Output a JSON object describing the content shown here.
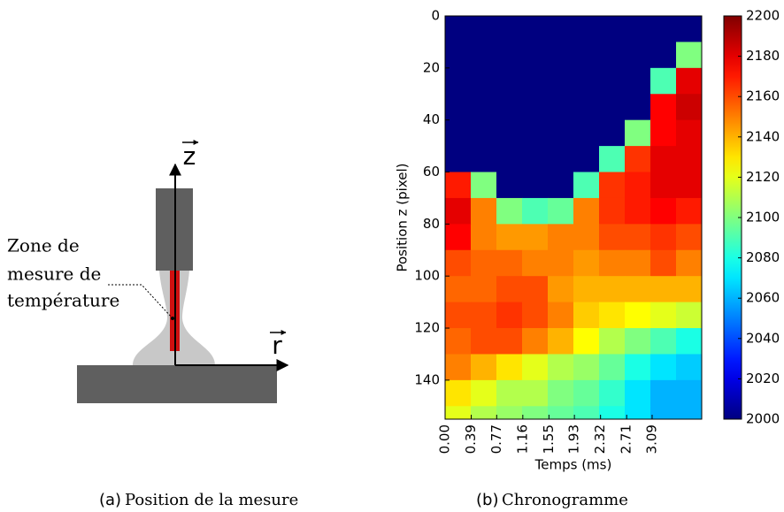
{
  "diagram": {
    "annotation": [
      "Zone de",
      "mesure de",
      "température"
    ],
    "axis_z": "z",
    "axis_r": "r"
  },
  "captions": [
    {
      "label": "(a)",
      "text": "Position de la mesure"
    },
    {
      "label": "(b)",
      "text": "Chronogramme"
    }
  ],
  "chart_data": {
    "type": "heatmap",
    "xlabel": "Temps (ms)",
    "ylabel": "Position z (pixel)",
    "xlim": [
      0,
      3.83
    ],
    "ylim": [
      0,
      155
    ],
    "y_inverted": true,
    "xticks": [
      {
        "value": 0,
        "label": "0.00"
      },
      0.39,
      0.77,
      1.16,
      1.55,
      1.93,
      2.32,
      2.71,
      3.09
    ],
    "yticks": [
      0,
      20,
      40,
      60,
      80,
      100,
      120,
      140
    ],
    "xbins": [
      0,
      0.383,
      0.766,
      1.149,
      1.532,
      1.915,
      2.298,
      2.681,
      3.064,
      3.447,
      3.83
    ],
    "ybins": [
      0,
      10,
      20,
      30,
      40,
      50,
      60,
      70,
      80,
      90,
      100,
      110,
      120,
      130,
      140,
      150,
      155
    ],
    "colormap": "jet",
    "clim": [
      2000,
      2200
    ],
    "colorbar_ticks": [
      2000,
      2020,
      2040,
      2060,
      2080,
      2100,
      2120,
      2140,
      2160,
      2180,
      2200
    ],
    "values": [
      [
        2000,
        2000,
        2000,
        2000,
        2000,
        2000,
        2000,
        2000,
        2000,
        2000
      ],
      [
        2000,
        2000,
        2000,
        2000,
        2000,
        2000,
        2000,
        2000,
        2000,
        2100
      ],
      [
        2000,
        2000,
        2000,
        2000,
        2000,
        2000,
        2000,
        2000,
        2090,
        2180
      ],
      [
        2000,
        2000,
        2000,
        2000,
        2000,
        2000,
        2000,
        2000,
        2175,
        2185
      ],
      [
        2000,
        2000,
        2000,
        2000,
        2000,
        2000,
        2000,
        2100,
        2175,
        2180
      ],
      [
        2000,
        2000,
        2000,
        2000,
        2000,
        2000,
        2090,
        2165,
        2180,
        2180
      ],
      [
        2170,
        2100,
        2000,
        2000,
        2000,
        2090,
        2165,
        2170,
        2180,
        2180
      ],
      [
        2180,
        2150,
        2100,
        2090,
        2095,
        2150,
        2165,
        2170,
        2175,
        2170
      ],
      [
        2175,
        2150,
        2145,
        2145,
        2150,
        2150,
        2160,
        2160,
        2165,
        2160
      ],
      [
        2160,
        2155,
        2155,
        2150,
        2150,
        2145,
        2150,
        2150,
        2160,
        2150
      ],
      [
        2155,
        2155,
        2160,
        2160,
        2145,
        2140,
        2140,
        2140,
        2140,
        2140
      ],
      [
        2160,
        2160,
        2165,
        2160,
        2150,
        2135,
        2130,
        2125,
        2120,
        2115
      ],
      [
        2155,
        2160,
        2160,
        2150,
        2140,
        2125,
        2110,
        2100,
        2090,
        2080
      ],
      [
        2150,
        2140,
        2130,
        2120,
        2110,
        2105,
        2095,
        2080,
        2070,
        2065
      ],
      [
        2130,
        2120,
        2110,
        2110,
        2100,
        2095,
        2085,
        2070,
        2060,
        2060
      ],
      [
        2120,
        2110,
        2105,
        2100,
        2095,
        2090,
        2080,
        2070,
        2060,
        2060
      ]
    ]
  }
}
